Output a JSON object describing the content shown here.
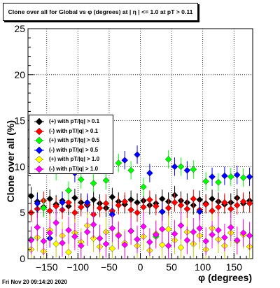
{
  "title": "Clone  over all for Global vs φ (degrees) at | η | <= 1.0 at pT > 0.11",
  "timestamp": "Fri Nov 20 09:14:20 2020",
  "chart_data": {
    "type": "scatter",
    "title": "Clone  over all for Global vs φ (degrees) at | η | <= 1.0 at pT > 0.11",
    "xlabel": "φ (degrees)",
    "ylabel": "Clone  over all (%)",
    "xlim": [
      -180,
      180
    ],
    "ylim": [
      0,
      25
    ],
    "xticks": [
      -150,
      -100,
      -50,
      0,
      50,
      100,
      150
    ],
    "yticks": [
      0,
      5,
      10,
      15,
      20,
      25
    ],
    "xtick_labels": [
      "−150",
      "−100",
      "−50",
      "0",
      "50",
      "100",
      "150"
    ],
    "ytick_labels": [
      "0",
      "5",
      "10",
      "15",
      "20",
      "25"
    ],
    "grid": true,
    "legend_position": "left-middle",
    "series": [
      {
        "name": "(+) with pT/|q| > 0.1",
        "color": "#000000",
        "x": [
          -175,
          -165,
          -155,
          -145,
          -135,
          -125,
          -115,
          -105,
          -95,
          -85,
          -75,
          -65,
          -55,
          -45,
          -35,
          -25,
          -15,
          -5,
          5,
          15,
          25,
          35,
          45,
          55,
          65,
          75,
          85,
          95,
          105,
          115,
          125,
          135,
          145,
          155,
          165,
          175
        ],
        "y": [
          6.8,
          6.2,
          5.6,
          6.5,
          5.9,
          6.3,
          5.7,
          6.6,
          6.1,
          5.8,
          6.4,
          6.0,
          5.5,
          6.7,
          6.2,
          5.9,
          6.4,
          6.1,
          6.3,
          5.8,
          6.0,
          6.5,
          6.2,
          6.9,
          6.3,
          6.1,
          5.8,
          6.4,
          6.0,
          6.5,
          6.2,
          5.9,
          6.1,
          6.6,
          6.0,
          6.3
        ]
      },
      {
        "name": "(-) with pT/|q| > 0.1",
        "color": "#ff0000",
        "x": [
          -175,
          -165,
          -155,
          -145,
          -135,
          -125,
          -115,
          -105,
          -95,
          -85,
          -75,
          -65,
          -55,
          -45,
          -35,
          -25,
          -15,
          -5,
          5,
          15,
          25,
          35,
          45,
          55,
          65,
          75,
          85,
          95,
          105,
          115,
          125,
          135,
          145,
          155,
          165,
          175
        ],
        "y": [
          5.0,
          5.4,
          6.3,
          5.2,
          5.7,
          5.3,
          6.1,
          5.0,
          5.6,
          5.9,
          4.8,
          5.5,
          6.0,
          5.2,
          5.8,
          6.2,
          5.3,
          5.0,
          5.6,
          6.4,
          5.7,
          5.1,
          5.5,
          6.1,
          5.8,
          5.4,
          6.5,
          5.3,
          5.9,
          5.2,
          5.6,
          6.1,
          5.4,
          5.8,
          6.2,
          6.0
        ]
      },
      {
        "name": "(+) with pT/|q| > 0.5",
        "color": "#00ff00",
        "x": [
          -175,
          -155,
          -135,
          -115,
          -95,
          -75,
          -55,
          -35,
          -15,
          5,
          25,
          45,
          65,
          85,
          105,
          125,
          145,
          165
        ],
        "y": [
          2.1,
          5.5,
          9.5,
          7.4,
          8.6,
          8.2,
          8.5,
          10.4,
          9.6,
          7.8,
          2.4,
          10.8,
          10.0,
          9.7,
          8.4,
          8.3,
          8.9,
          8.8
        ]
      },
      {
        "name": "(-) with pT/|q| > 0.5",
        "color": "#0000ff",
        "x": [
          -165,
          -145,
          -125,
          -105,
          -85,
          -65,
          -45,
          -25,
          -5,
          15,
          35,
          55,
          75,
          95,
          115,
          135,
          155,
          175
        ],
        "y": [
          6.0,
          2.2,
          6.1,
          9.3,
          6.1,
          10.5,
          4.8,
          10.7,
          11.3,
          9.3,
          5.1,
          10.0,
          9.6,
          5.1,
          8.9,
          9.0,
          9.1,
          8.9
        ]
      },
      {
        "name": "(+) with pT/|q| > 1.0",
        "color": "#ffff00",
        "x": [
          -175,
          -165,
          -155,
          -145,
          -135,
          -125,
          -115,
          -105,
          -95,
          -85,
          -75,
          -65,
          -55,
          -45,
          -35,
          -25,
          -15,
          -5,
          5,
          15,
          25,
          35,
          45,
          55,
          65,
          75,
          85,
          95,
          105,
          115,
          125,
          135,
          145,
          155,
          165,
          175
        ],
        "y": [
          1.0,
          2.3,
          0.8,
          3.1,
          1.6,
          2.5,
          0.7,
          2.8,
          1.8,
          3.6,
          2.2,
          1.3,
          2.9,
          1.1,
          2.6,
          1.7,
          3.0,
          1.4,
          2.4,
          0.9,
          2.7,
          1.5,
          3.2,
          2.0,
          1.2,
          2.9,
          1.6,
          2.5,
          1.0,
          3.3,
          2.1,
          1.4,
          2.8,
          1.9,
          2.6,
          1.3
        ]
      },
      {
        "name": "(-) with pT/|q| > 1.0",
        "color": "#ff00ff",
        "x": [
          -175,
          -165,
          -155,
          -145,
          -135,
          -125,
          -115,
          -105,
          -95,
          -85,
          -75,
          -65,
          -55,
          -45,
          -35,
          -25,
          -15,
          -5,
          5,
          15,
          25,
          35,
          45,
          55,
          65,
          75,
          85,
          95,
          105,
          115,
          125,
          135,
          145,
          155,
          165,
          175
        ],
        "y": [
          2.0,
          3.4,
          1.9,
          2.8,
          3.9,
          1.7,
          3.1,
          2.4,
          1.4,
          2.9,
          3.7,
          2.2,
          1.6,
          3.3,
          2.5,
          1.5,
          3.0,
          2.1,
          3.5,
          1.8,
          2.6,
          3.2,
          1.4,
          2.7,
          3.6,
          2.0,
          2.9,
          3.3,
          1.9,
          2.6,
          3.1,
          2.3,
          3.4,
          2.0,
          2.8,
          2.5
        ]
      }
    ]
  }
}
